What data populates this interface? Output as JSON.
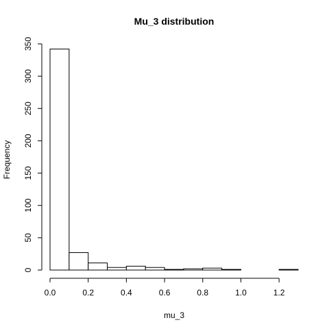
{
  "chart_data": {
    "type": "bar",
    "title": "Mu_3 distribution",
    "xlabel": "mu_3",
    "ylabel": "Frequency",
    "bin_edges": [
      0.0,
      0.1,
      0.2,
      0.3,
      0.4,
      0.5,
      0.6,
      0.7,
      0.8,
      0.9,
      1.0,
      1.1,
      1.2,
      1.3
    ],
    "values": [
      342,
      27,
      11,
      4,
      6,
      4,
      1,
      2,
      3,
      1,
      0,
      0,
      1
    ],
    "xlim": [
      0.0,
      1.3
    ],
    "ylim": [
      0,
      350
    ],
    "x_ticks": [
      0.0,
      0.2,
      0.4,
      0.6,
      0.8,
      1.0,
      1.2
    ],
    "x_tick_labels": [
      "0.0",
      "0.2",
      "0.4",
      "0.6",
      "0.8",
      "1.0",
      "1.2"
    ],
    "y_ticks": [
      0,
      50,
      100,
      150,
      200,
      250,
      300,
      350
    ],
    "y_tick_labels": [
      "0",
      "50",
      "100",
      "150",
      "200",
      "250",
      "300",
      "350"
    ],
    "grid": false,
    "legend": "none"
  }
}
